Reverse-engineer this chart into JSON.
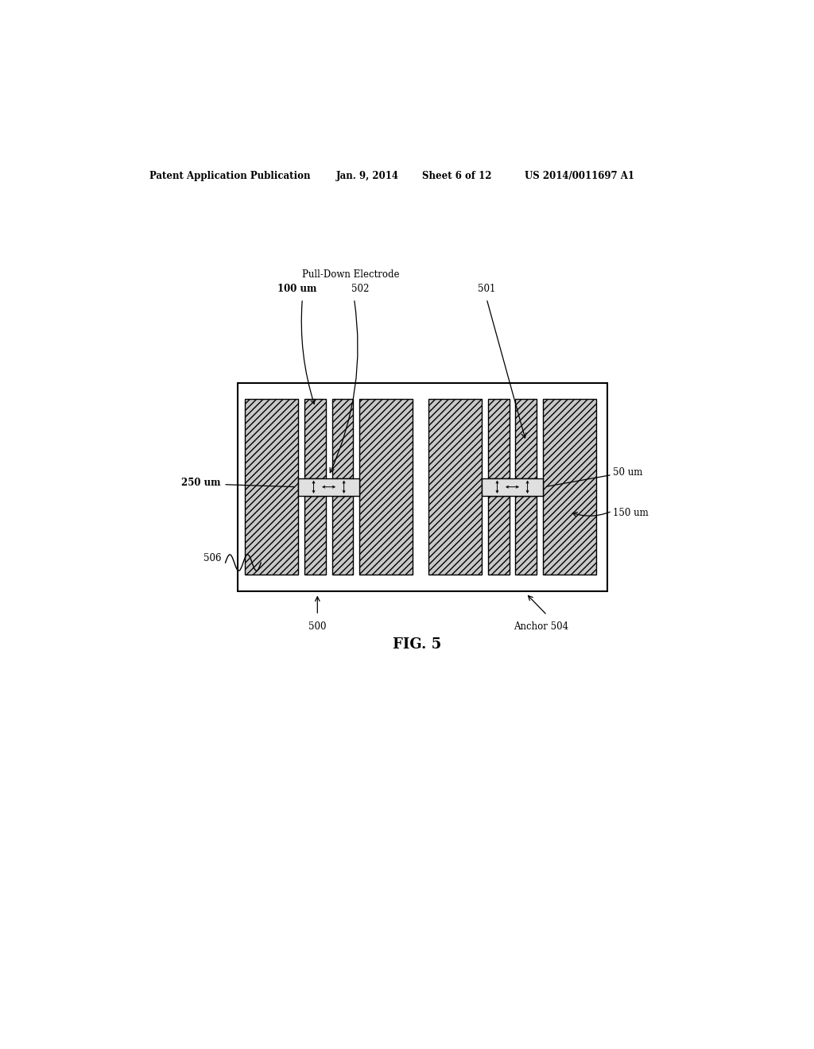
{
  "bg_color": "#ffffff",
  "page_width": 10.24,
  "page_height": 13.2,
  "header_text": "Patent Application Publication",
  "header_date": "Jan. 9, 2014",
  "header_sheet": "Sheet 6 of 12",
  "header_patent": "US 2014/0011697 A1",
  "fig_label": "FIG. 5",
  "hatch_pattern": "////",
  "line_color": "#000000",
  "hatch_fc": "#c8c8c8"
}
